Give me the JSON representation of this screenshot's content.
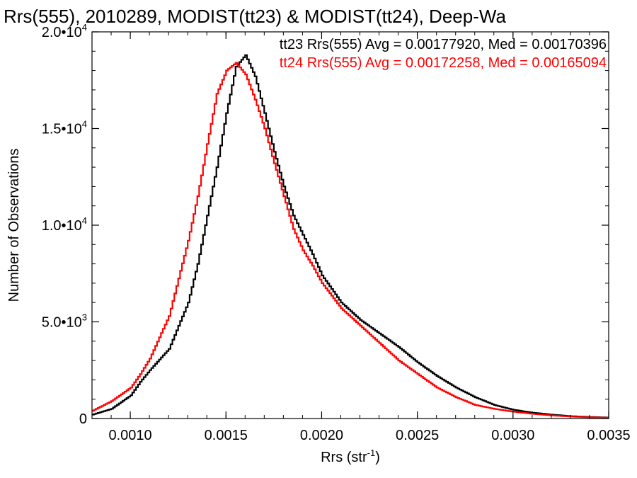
{
  "chart_data": {
    "type": "line",
    "title": "Rrs(555), 2010289, MODIST(tt23) & MODIST(tt24), Deep-Wa",
    "xlabel": "Rrs (str",
    "xlabel_sup": "-1",
    "xlabel_suffix": ")",
    "ylabel": "Number of Observations",
    "xlim": [
      0.0008,
      0.0035
    ],
    "ylim": [
      0,
      20000
    ],
    "x_ticks": [
      {
        "value": 0.001,
        "label": "0.0010"
      },
      {
        "value": 0.0015,
        "label": "0.0015"
      },
      {
        "value": 0.002,
        "label": "0.0020"
      },
      {
        "value": 0.0025,
        "label": "0.0025"
      },
      {
        "value": 0.003,
        "label": "0.0030"
      },
      {
        "value": 0.0035,
        "label": "0.0035"
      }
    ],
    "y_ticks": [
      {
        "value": 0,
        "mant": "0",
        "exp": ""
      },
      {
        "value": 5000,
        "mant": "5.0•10",
        "exp": "3"
      },
      {
        "value": 10000,
        "mant": "1.0•10",
        "exp": "4"
      },
      {
        "value": 15000,
        "mant": "1.5•10",
        "exp": "4"
      },
      {
        "value": 20000,
        "mant": "2.0•10",
        "exp": "4"
      }
    ],
    "series": [
      {
        "name": "tt23",
        "color": "#000000",
        "annotation": "tt23 Rrs(555) Avg = 0.00177920, Med = 0.00170396",
        "points": [
          [
            0.0008,
            200
          ],
          [
            0.0009,
            500
          ],
          [
            0.001,
            1200
          ],
          [
            0.00105,
            1900
          ],
          [
            0.0011,
            2500
          ],
          [
            0.0012,
            3600
          ],
          [
            0.0013,
            6000
          ],
          [
            0.00135,
            8000
          ],
          [
            0.0014,
            10500
          ],
          [
            0.00145,
            13000
          ],
          [
            0.0015,
            15800
          ],
          [
            0.00155,
            18200
          ],
          [
            0.0016,
            18800
          ],
          [
            0.00165,
            17700
          ],
          [
            0.0017,
            15800
          ],
          [
            0.00175,
            13800
          ],
          [
            0.0018,
            12000
          ],
          [
            0.00185,
            10500
          ],
          [
            0.0019,
            9500
          ],
          [
            0.00195,
            8500
          ],
          [
            0.002,
            7400
          ],
          [
            0.0021,
            6000
          ],
          [
            0.0022,
            5100
          ],
          [
            0.0023,
            4400
          ],
          [
            0.0024,
            3700
          ],
          [
            0.0025,
            2900
          ],
          [
            0.0026,
            2200
          ],
          [
            0.0027,
            1600
          ],
          [
            0.0028,
            1100
          ],
          [
            0.0029,
            700
          ],
          [
            0.003,
            450
          ],
          [
            0.0031,
            300
          ],
          [
            0.0032,
            200
          ],
          [
            0.0033,
            120
          ],
          [
            0.0034,
            80
          ],
          [
            0.0035,
            50
          ]
        ]
      },
      {
        "name": "tt24",
        "color": "#ff0000",
        "annotation": "tt24 Rrs(555) Avg = 0.00172258, Med = 0.00165094",
        "points": [
          [
            0.0008,
            400
          ],
          [
            0.0009,
            900
          ],
          [
            0.001,
            1600
          ],
          [
            0.00105,
            2300
          ],
          [
            0.0011,
            3100
          ],
          [
            0.0012,
            5300
          ],
          [
            0.0013,
            9200
          ],
          [
            0.00135,
            11500
          ],
          [
            0.0014,
            14200
          ],
          [
            0.00145,
            16800
          ],
          [
            0.0015,
            18000
          ],
          [
            0.00155,
            18400
          ],
          [
            0.0016,
            17800
          ],
          [
            0.00165,
            16500
          ],
          [
            0.0017,
            15000
          ],
          [
            0.00175,
            13200
          ],
          [
            0.0018,
            11500
          ],
          [
            0.00185,
            9800
          ],
          [
            0.0019,
            8700
          ],
          [
            0.00195,
            7900
          ],
          [
            0.002,
            7000
          ],
          [
            0.0021,
            5700
          ],
          [
            0.0022,
            4800
          ],
          [
            0.0023,
            3900
          ],
          [
            0.0024,
            3000
          ],
          [
            0.0025,
            2300
          ],
          [
            0.0026,
            1600
          ],
          [
            0.0027,
            1100
          ],
          [
            0.0028,
            700
          ],
          [
            0.0029,
            500
          ],
          [
            0.003,
            350
          ],
          [
            0.0031,
            240
          ],
          [
            0.0032,
            160
          ],
          [
            0.0033,
            100
          ],
          [
            0.0034,
            60
          ],
          [
            0.0035,
            40
          ]
        ]
      }
    ]
  }
}
